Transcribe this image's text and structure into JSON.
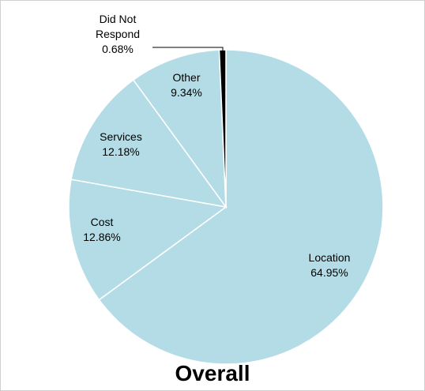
{
  "chart_data": {
    "type": "pie",
    "title": "Overall",
    "categories": [
      "Location",
      "Cost",
      "Services",
      "Other",
      "Did Not Respond"
    ],
    "values": [
      64.95,
      12.86,
      12.18,
      9.34,
      0.68
    ],
    "value_labels": [
      "64.95%",
      "12.86%",
      "12.18%",
      "9.34%",
      "0.68%"
    ],
    "colors": [
      "#b4dce6",
      "#b4dce6",
      "#b4dce6",
      "#b4dce6",
      "#000000"
    ]
  }
}
